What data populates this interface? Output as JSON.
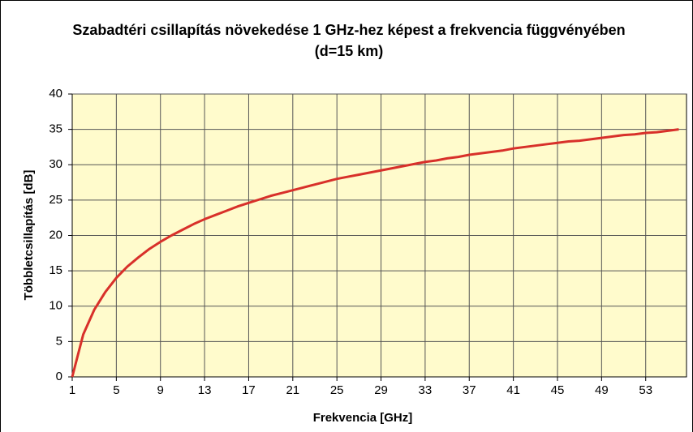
{
  "chart_data": {
    "type": "line",
    "title": "Szabadtéri csillapítás növekedése 1 GHz-hez képest a frekvencia függvényében  (d=15 km)",
    "x_label": "Frekvencia [GHz]",
    "y_label": "Többletcsillapítás [dB]",
    "x": [
      1,
      2,
      3,
      4,
      5,
      6,
      7,
      8,
      9,
      10,
      11,
      12,
      13,
      14,
      15,
      16,
      17,
      18,
      19,
      20,
      21,
      22,
      23,
      24,
      25,
      26,
      27,
      28,
      29,
      30,
      31,
      32,
      33,
      34,
      35,
      36,
      37,
      38,
      39,
      40,
      41,
      42,
      43,
      44,
      45,
      46,
      47,
      48,
      49,
      50,
      51,
      52,
      53,
      54,
      55,
      56
    ],
    "series": [
      {
        "color": "#d8302a",
        "values": [
          0,
          6.0,
          9.5,
          12.0,
          14.0,
          15.6,
          16.9,
          18.1,
          19.1,
          20.0,
          20.8,
          21.6,
          22.3,
          22.9,
          23.5,
          24.1,
          24.6,
          25.1,
          25.6,
          26.0,
          26.4,
          26.8,
          27.2,
          27.6,
          28.0,
          28.3,
          28.6,
          28.9,
          29.2,
          29.5,
          29.8,
          30.1,
          30.4,
          30.6,
          30.9,
          31.1,
          31.4,
          31.6,
          31.8,
          32.0,
          32.3,
          32.5,
          32.7,
          32.9,
          33.1,
          33.3,
          33.4,
          33.6,
          33.8,
          34.0,
          34.2,
          34.3,
          34.5,
          34.6,
          34.8,
          35.0
        ]
      }
    ],
    "xlim": [
      1,
      56.7
    ],
    "xticks": [
      1,
      5,
      9,
      13,
      17,
      21,
      25,
      29,
      33,
      37,
      41,
      45,
      49,
      53
    ],
    "ylim": [
      0,
      40
    ],
    "yticks": [
      0,
      5,
      10,
      15,
      20,
      25,
      30,
      35,
      40
    ],
    "grid": true,
    "plot_background": "#fffbcc"
  }
}
